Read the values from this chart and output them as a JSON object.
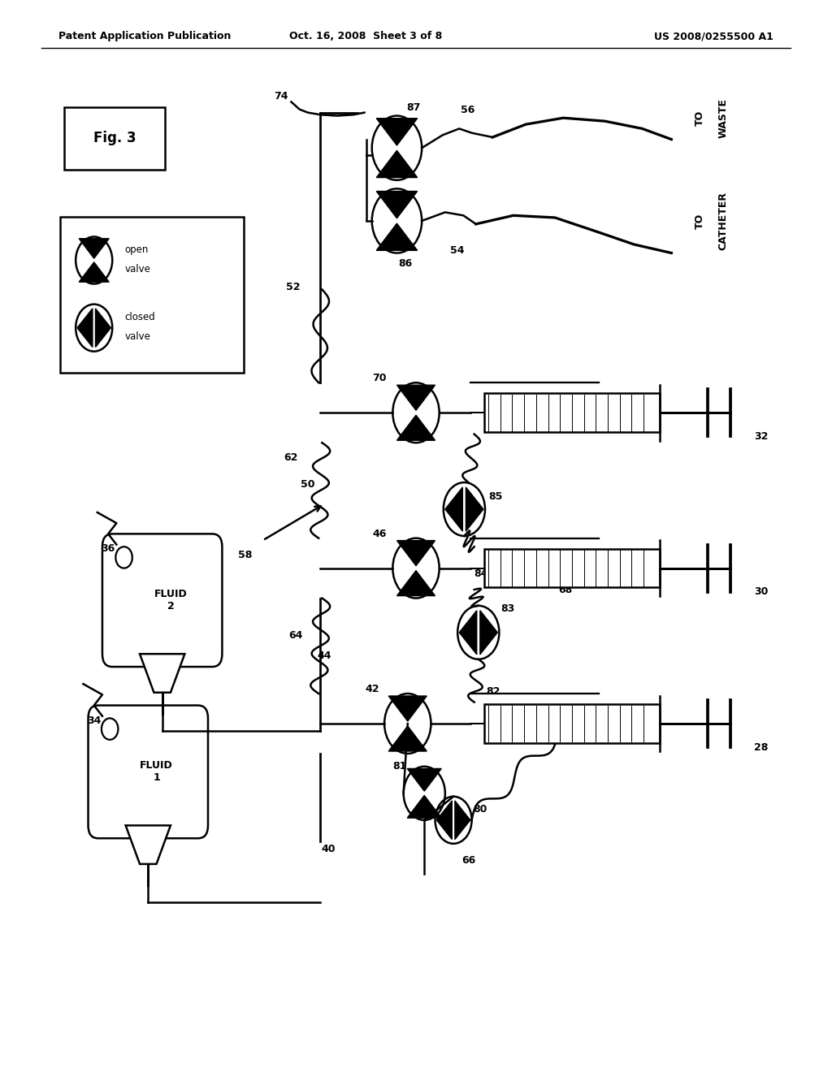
{
  "bg_color": "#ffffff",
  "header_left": "Patent Application Publication",
  "header_mid": "Oct. 16, 2008  Sheet 3 of 8",
  "header_right": "US 2008/0255500 A1",
  "fig_label": "Fig. 3",
  "lw": 1.8
}
